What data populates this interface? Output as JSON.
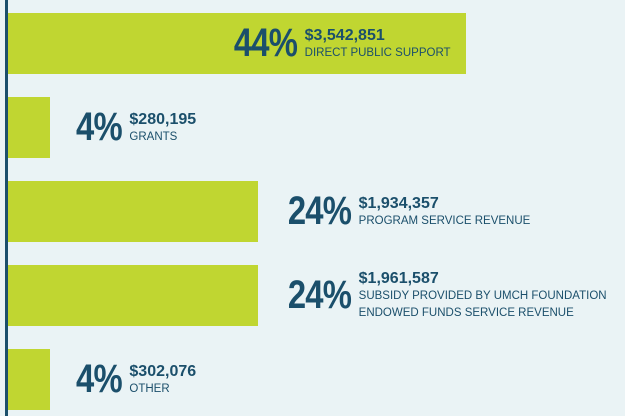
{
  "chart_data": {
    "type": "bar",
    "orientation": "horizontal",
    "color": "#c0d631",
    "categories": [
      "DIRECT PUBLIC SUPPORT",
      "GRANTS",
      "PROGRAM SERVICE REVENUE",
      "SUBSIDY PROVIDED BY UMCH FOUNDATION ENDOWED FUNDS SERVICE REVENUE",
      "OTHER"
    ],
    "values": [
      44,
      4,
      24,
      24,
      4
    ],
    "value_labels": [
      "44%",
      "4%",
      "24%",
      "24%",
      "4%"
    ],
    "amount_labels": [
      "$3,542,851",
      "$280,195",
      "$1,934,357",
      "$1,961,587",
      "$302,076"
    ]
  }
}
